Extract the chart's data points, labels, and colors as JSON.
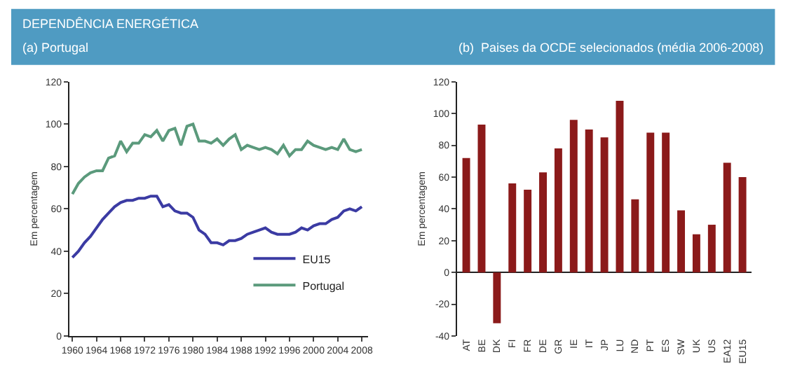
{
  "chart_data": [
    {
      "type": "line",
      "title": "DEPENDÊNCIA ENERGÉTICA",
      "subtitle": "(a) Portugal",
      "ylabel": "Em percentagem",
      "x": [
        1960,
        1961,
        1962,
        1963,
        1964,
        1965,
        1966,
        1967,
        1968,
        1969,
        1970,
        1971,
        1972,
        1973,
        1974,
        1975,
        1976,
        1977,
        1978,
        1979,
        1980,
        1981,
        1982,
        1983,
        1984,
        1985,
        1986,
        1987,
        1988,
        1989,
        1990,
        1991,
        1992,
        1993,
        1994,
        1995,
        1996,
        1997,
        1998,
        1999,
        2000,
        2001,
        2002,
        2003,
        2004,
        2005,
        2006,
        2007,
        2008
      ],
      "series": [
        {
          "name": "EU15",
          "color": "#3b3ba3",
          "values": [
            37,
            40,
            44,
            47,
            51,
            55,
            58,
            61,
            63,
            64,
            64,
            65,
            65,
            66,
            66,
            61,
            62,
            59,
            58,
            58,
            56,
            50,
            48,
            44,
            44,
            43,
            45,
            45,
            46,
            48,
            49,
            50,
            51,
            49,
            48,
            48,
            48,
            49,
            51,
            50,
            52,
            53,
            53,
            55,
            56,
            59,
            60,
            59,
            61
          ]
        },
        {
          "name": "Portugal",
          "color": "#5b9a7c",
          "values": [
            67,
            72,
            75,
            77,
            78,
            78,
            84,
            85,
            92,
            87,
            91,
            91,
            95,
            94,
            97,
            92,
            97,
            98,
            90,
            99,
            100,
            92,
            92,
            91,
            93,
            90,
            93,
            95,
            88,
            90,
            89,
            88,
            89,
            88,
            86,
            90,
            85,
            88,
            88,
            92,
            90,
            89,
            88,
            89,
            88,
            93,
            88,
            87,
            88
          ]
        }
      ],
      "xlim": [
        1959.5,
        2009
      ],
      "xticks": [
        1960,
        1964,
        1968,
        1972,
        1976,
        1980,
        1984,
        1988,
        1992,
        1996,
        2000,
        2004,
        2008
      ],
      "ylim": [
        0,
        120
      ],
      "yticks": [
        0,
        20,
        40,
        60,
        80,
        100,
        120
      ],
      "legend": "bottom right",
      "marker": "none",
      "line_style": "solid"
    },
    {
      "type": "bar",
      "title": "(b)  Paises da OCDE selecionados (média 2006-2008)",
      "ylabel": "Em percentagem",
      "categories": [
        "AT",
        "BE",
        "DK",
        "FI",
        "FR",
        "DE",
        "GR",
        "IE",
        "IT",
        "JP",
        "LU",
        "ND",
        "PT",
        "ES",
        "SW",
        "UK",
        "US",
        "EA12",
        "EU15"
      ],
      "values": [
        72,
        93,
        -32,
        56,
        52,
        63,
        78,
        96,
        90,
        85,
        108,
        46,
        88,
        88,
        39,
        24,
        30,
        69,
        60
      ],
      "color": "#8b1a1a",
      "ylim": [
        -40,
        120
      ],
      "yticks": [
        -40,
        -20,
        0,
        20,
        40,
        60,
        80,
        100,
        120
      ],
      "legend": false
    }
  ]
}
